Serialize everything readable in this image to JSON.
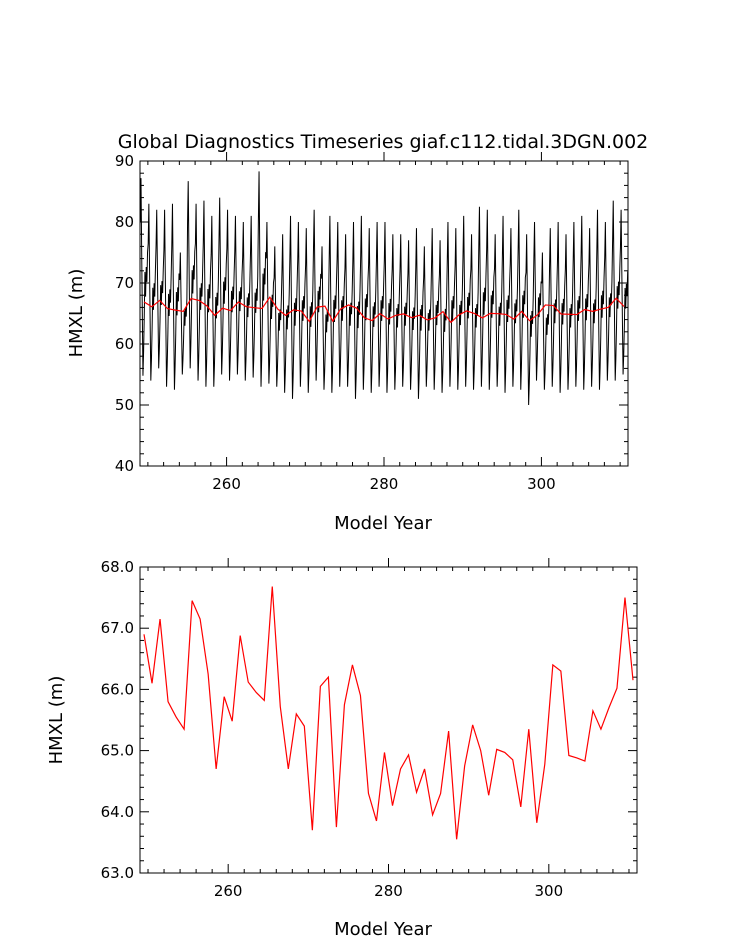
{
  "chart_data": [
    {
      "type": "line",
      "title": "Global Diagnostics Timeseries giaf.c112.tidal.3DGN.002",
      "xlabel": "Model Year",
      "ylabel": "HMXL (m)",
      "xlim": [
        249,
        311
      ],
      "ylim": [
        40,
        90
      ],
      "xticks": [
        260,
        280,
        300
      ],
      "yticks": [
        40,
        50,
        60,
        70,
        80,
        90
      ],
      "grid": false,
      "series": [
        {
          "color": "#000000",
          "monthly": true,
          "x_start": 249,
          "annual_max": [
            87.2,
            83,
            82,
            82,
            83,
            75,
            86.7,
            83,
            83.5,
            81,
            84,
            82,
            81,
            80,
            81,
            88.3,
            80,
            76,
            78,
            81,
            80,
            79,
            82,
            76,
            81,
            80,
            78,
            80,
            81,
            79,
            80,
            80,
            78,
            78,
            77,
            79,
            76,
            79,
            77,
            80,
            79,
            81,
            78,
            82.5,
            82,
            78,
            81,
            79,
            82,
            78,
            80,
            75,
            79,
            80,
            78,
            80,
            81,
            79,
            82,
            80,
            83.5,
            82
          ],
          "annual_min": [
            54.8,
            54,
            56,
            53,
            52.5,
            55,
            56,
            54,
            53,
            53,
            55,
            54,
            55,
            54,
            54.5,
            53,
            53.5,
            53,
            52,
            51,
            53,
            52,
            54,
            52.5,
            52,
            53,
            53,
            51,
            52.5,
            52,
            53,
            52,
            52.5,
            53,
            52.5,
            51,
            53,
            52.5,
            52,
            53,
            52.5,
            53,
            52.5,
            53,
            52.5,
            53,
            52,
            53,
            52.5,
            50,
            54,
            52.5,
            53,
            52,
            52.5,
            53,
            52.5,
            53,
            52.5,
            54,
            54,
            55
          ]
        },
        {
          "color": "#ff0000",
          "x": [
            249,
            250,
            251,
            252,
            253,
            254,
            255,
            256,
            257,
            258,
            259,
            260,
            261,
            262,
            263,
            264,
            265,
            266,
            267,
            268,
            269,
            270,
            271,
            272,
            273,
            274,
            275,
            276,
            277,
            278,
            279,
            280,
            281,
            282,
            283,
            284,
            285,
            286,
            287,
            288,
            289,
            290,
            291,
            292,
            293,
            294,
            295,
            296,
            297,
            298,
            299,
            300,
            301,
            302,
            303,
            304,
            305,
            306,
            307,
            308,
            309,
            310
          ],
          "values": [
            66.9,
            66.1,
            67.15,
            65.8,
            65.55,
            65.35,
            67.45,
            67.15,
            66.25,
            64.7,
            65.88,
            65.48,
            66.88,
            66.12,
            65.95,
            65.82,
            67.68,
            65.72,
            64.7,
            65.6,
            65.4,
            63.7,
            66.05,
            66.2,
            63.75,
            65.75,
            66.4,
            65.9,
            64.3,
            63.85,
            64.97,
            64.1,
            64.7,
            64.93,
            64.32,
            64.7,
            63.95,
            64.3,
            65.32,
            63.55,
            64.75,
            65.42,
            65.0,
            64.27,
            65.02,
            64.97,
            64.85,
            64.08,
            65.35,
            63.82,
            64.78,
            66.4,
            66.3,
            64.92,
            64.88,
            64.83,
            65.65,
            65.35,
            65.7,
            66.02,
            67.5,
            66.15
          ]
        }
      ]
    },
    {
      "type": "line",
      "xlabel": "Model Year",
      "ylabel": "HMXL (m)",
      "xlim": [
        249,
        311
      ],
      "ylim": [
        63,
        68
      ],
      "xticks": [
        260,
        280,
        300
      ],
      "yticks": [
        63.0,
        64.0,
        65.0,
        66.0,
        67.0,
        68.0
      ],
      "ytick_labels": [
        "63.0",
        "64.0",
        "65.0",
        "66.0",
        "67.0",
        "68.0"
      ],
      "grid": false,
      "series": [
        {
          "color": "#ff0000",
          "x": [
            249,
            250,
            251,
            252,
            253,
            254,
            255,
            256,
            257,
            258,
            259,
            260,
            261,
            262,
            263,
            264,
            265,
            266,
            267,
            268,
            269,
            270,
            271,
            272,
            273,
            274,
            275,
            276,
            277,
            278,
            279,
            280,
            281,
            282,
            283,
            284,
            285,
            286,
            287,
            288,
            289,
            290,
            291,
            292,
            293,
            294,
            295,
            296,
            297,
            298,
            299,
            300,
            301,
            302,
            303,
            304,
            305,
            306,
            307,
            308,
            309,
            310
          ],
          "values": [
            66.9,
            66.1,
            67.15,
            65.8,
            65.55,
            65.35,
            67.45,
            67.15,
            66.25,
            64.7,
            65.88,
            65.48,
            66.88,
            66.12,
            65.95,
            65.82,
            67.68,
            65.72,
            64.7,
            65.6,
            65.4,
            63.7,
            66.05,
            66.2,
            63.75,
            65.75,
            66.4,
            65.9,
            64.3,
            63.85,
            64.97,
            64.1,
            64.7,
            64.93,
            64.32,
            64.7,
            63.95,
            64.3,
            65.32,
            63.55,
            64.75,
            65.42,
            65.0,
            64.27,
            65.02,
            64.97,
            64.85,
            64.08,
            65.35,
            63.82,
            64.78,
            66.4,
            66.3,
            64.92,
            64.88,
            64.83,
            65.65,
            65.35,
            65.7,
            66.02,
            67.5,
            66.15
          ]
        }
      ]
    }
  ]
}
